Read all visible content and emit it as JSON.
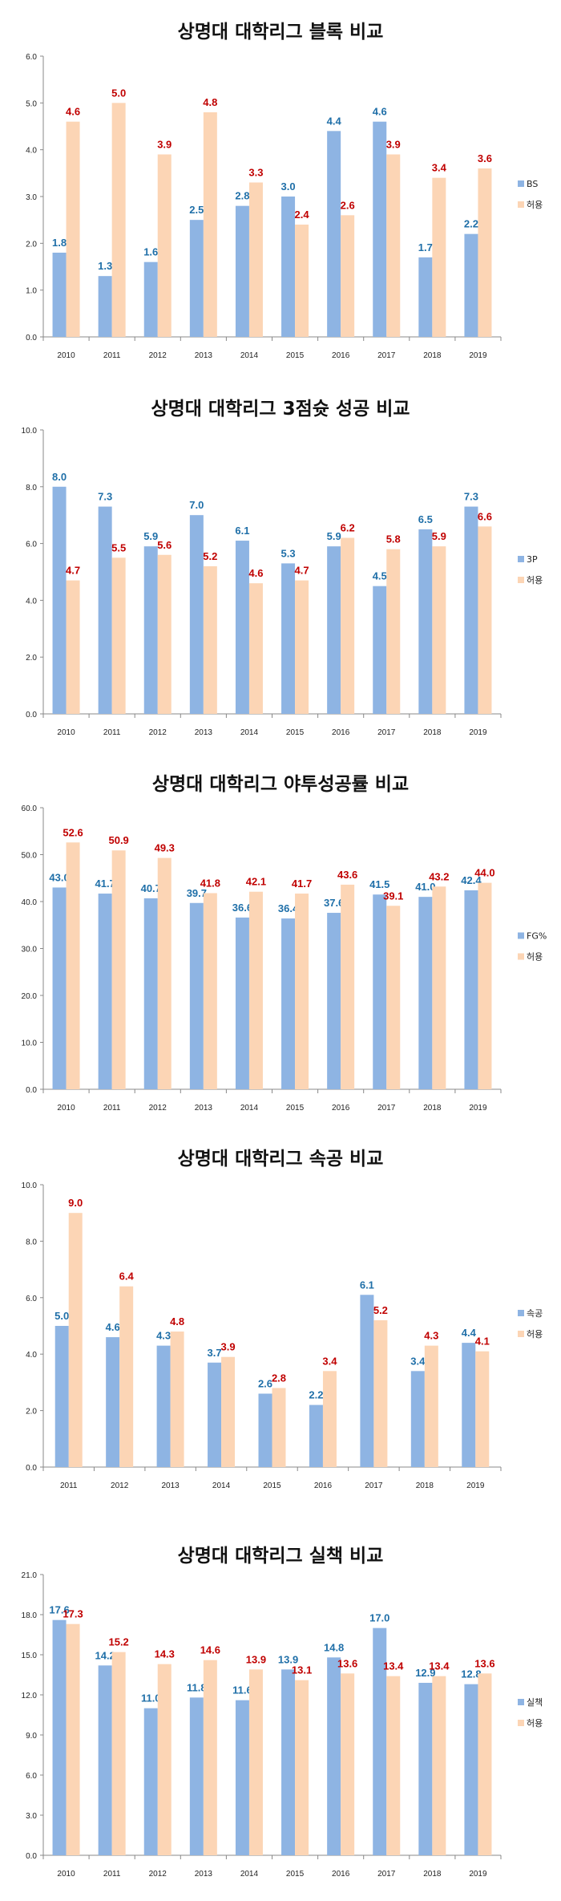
{
  "colors": {
    "primary_bar": "#8eb4e3",
    "allowed_bar": "#fcd5b5",
    "primary_label": "#1f6fa8",
    "allowed_label": "#c00000"
  },
  "chart_data": [
    {
      "type": "bar",
      "title": "상명대 대학리그 블록 비교",
      "categories": [
        "2010",
        "2011",
        "2012",
        "2013",
        "2014",
        "2015",
        "2016",
        "2017",
        "2018",
        "2019"
      ],
      "ylim": [
        0,
        6
      ],
      "ytick_step": 1.0,
      "ytick_labels": [
        "0.0",
        "1.0",
        "2.0",
        "3.0",
        "4.0",
        "5.0",
        "6.0"
      ],
      "legend_position": "right",
      "grid": false,
      "series": [
        {
          "name": "BS",
          "values": [
            1.8,
            1.3,
            1.6,
            2.5,
            2.8,
            3.0,
            4.4,
            4.6,
            1.7,
            2.2
          ]
        },
        {
          "name": "허용",
          "values": [
            4.6,
            5.0,
            3.9,
            4.8,
            3.3,
            2.4,
            2.6,
            3.9,
            3.4,
            3.6
          ]
        }
      ]
    },
    {
      "type": "bar",
      "title": "상명대 대학리그 3점슛 성공 비교",
      "categories": [
        "2010",
        "2011",
        "2012",
        "2013",
        "2014",
        "2015",
        "2016",
        "2017",
        "2018",
        "2019"
      ],
      "ylim": [
        0,
        10
      ],
      "ytick_step": 2.0,
      "ytick_labels": [
        "0.0",
        "2.0",
        "4.0",
        "6.0",
        "8.0",
        "10.0"
      ],
      "legend_position": "right",
      "grid": false,
      "series": [
        {
          "name": "3P",
          "values": [
            8.0,
            7.3,
            5.9,
            7.0,
            6.1,
            5.3,
            5.9,
            4.5,
            6.5,
            7.3
          ]
        },
        {
          "name": "허용",
          "values": [
            4.7,
            5.5,
            5.6,
            5.2,
            4.6,
            4.7,
            6.2,
            5.8,
            5.9,
            6.6
          ]
        }
      ]
    },
    {
      "type": "bar",
      "title": "상명대 대학리그 야투성공률 비교",
      "categories": [
        "2010",
        "2011",
        "2012",
        "2013",
        "2014",
        "2015",
        "2016",
        "2017",
        "2018",
        "2019"
      ],
      "ylim": [
        0,
        60
      ],
      "ytick_step": 10,
      "ytick_labels": [
        "0.0",
        "10.0",
        "20.0",
        "30.0",
        "40.0",
        "50.0",
        "60.0"
      ],
      "legend_position": "right",
      "grid": false,
      "series": [
        {
          "name": "FG%",
          "values": [
            43.0,
            41.7,
            40.7,
            39.7,
            36.6,
            36.4,
            37.6,
            41.5,
            41.0,
            42.4
          ]
        },
        {
          "name": "허용",
          "values": [
            52.6,
            50.9,
            49.3,
            41.8,
            42.1,
            41.7,
            43.6,
            39.1,
            43.2,
            44.0
          ]
        }
      ]
    },
    {
      "type": "bar",
      "title": "상명대 대학리그 속공 비교",
      "categories": [
        "2011",
        "2012",
        "2013",
        "2014",
        "2015",
        "2016",
        "2017",
        "2018",
        "2019"
      ],
      "ylim": [
        0,
        10
      ],
      "ytick_step": 2.0,
      "ytick_labels": [
        "0.0",
        "2.0",
        "4.0",
        "6.0",
        "8.0",
        "10.0"
      ],
      "legend_position": "right",
      "grid": false,
      "series": [
        {
          "name": "속공",
          "values": [
            5.0,
            4.6,
            4.3,
            3.7,
            2.6,
            2.2,
            6.1,
            3.4,
            4.4
          ]
        },
        {
          "name": "허용",
          "values": [
            9.0,
            6.4,
            4.8,
            3.9,
            2.8,
            3.4,
            5.2,
            4.3,
            4.1
          ]
        }
      ]
    },
    {
      "type": "bar",
      "title": "상명대 대학리그 실책 비교",
      "categories": [
        "2010",
        "2011",
        "2012",
        "2013",
        "2014",
        "2015",
        "2016",
        "2017",
        "2018",
        "2019"
      ],
      "ylim": [
        0,
        21
      ],
      "ytick_step": 3.0,
      "ytick_labels": [
        "0.0",
        "3.0",
        "6.0",
        "9.0",
        "12.0",
        "15.0",
        "18.0",
        "21.0"
      ],
      "legend_position": "right",
      "grid": false,
      "series": [
        {
          "name": "실책",
          "values": [
            17.6,
            14.2,
            11.0,
            11.8,
            11.6,
            13.9,
            14.8,
            17.0,
            12.9,
            12.8
          ]
        },
        {
          "name": "허용",
          "values": [
            17.3,
            15.2,
            14.3,
            14.6,
            13.9,
            13.1,
            13.6,
            13.4,
            13.4,
            13.6
          ]
        }
      ]
    }
  ]
}
